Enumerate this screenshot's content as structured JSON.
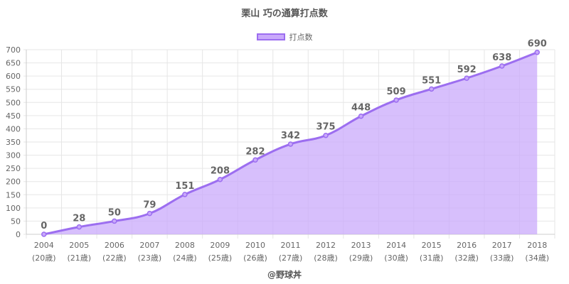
{
  "title": "栗山 巧の通算打点数",
  "legend_label": "打点数",
  "footer": "@野球丼",
  "colors": {
    "line": "#9c6ef0",
    "fill": "#c9a9fb",
    "grid": "#e6e6e6",
    "axis": "#cccccc"
  },
  "chart_data": {
    "type": "area",
    "title": "栗山 巧の通算打点数",
    "xlabel": "",
    "ylabel": "",
    "categories": [
      "2004",
      "2005",
      "2006",
      "2007",
      "2008",
      "2009",
      "2010",
      "2011",
      "2012",
      "2013",
      "2014",
      "2015",
      "2016",
      "2017",
      "2018"
    ],
    "category_sublabels": [
      "(20歳)",
      "(21歳)",
      "(22歳)",
      "(23歳)",
      "(24歳)",
      "(25歳)",
      "(26歳)",
      "(27歳)",
      "(28歳)",
      "(29歳)",
      "(30歳)",
      "(31歳)",
      "(32歳)",
      "(33歳)",
      "(34歳)"
    ],
    "series": [
      {
        "name": "打点数",
        "values": [
          0,
          28,
          50,
          79,
          151,
          208,
          282,
          342,
          375,
          448,
          509,
          551,
          592,
          638,
          690
        ]
      }
    ],
    "ylim": [
      0,
      700
    ],
    "yticks": [
      0,
      50,
      100,
      150,
      200,
      250,
      300,
      350,
      400,
      450,
      500,
      550,
      600,
      650,
      700
    ],
    "grid": true,
    "legend_position": "top-center"
  }
}
